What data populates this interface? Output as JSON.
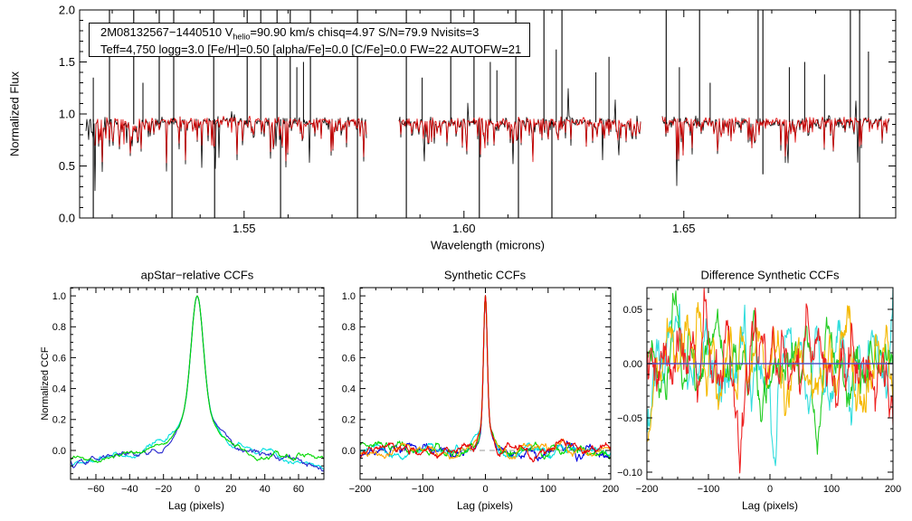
{
  "figure": {
    "background": "#ffffff",
    "kind": "APOGEE spectrum and CCF QA figure"
  },
  "chart_data": [
    {
      "id": "spectrum",
      "type": "line",
      "annotation": {
        "line1_pre": "2M08132567−1440510  V",
        "line1_sub": "helio",
        "line1_post": "=90.90 km/s  chisq=4.97  S/N=79.9  Nvisits=3",
        "line2": "Teff=4,750 logg=3.0 [Fe/H]=0.50 [alpha/Fe]=0.0 [C/Fe]=0.0 FW=22 AUTOFW=21"
      },
      "xlabel": "Wavelength (microns)",
      "ylabel": "Normalized Flux",
      "xlim": [
        1.5126,
        1.6982
      ],
      "ylim": [
        0.0,
        2.0
      ],
      "xticks": [
        {
          "v": 1.55,
          "label": "1.55"
        },
        {
          "v": 1.6,
          "label": "1.60"
        },
        {
          "v": 1.65,
          "label": "1.65"
        }
      ],
      "xminor": 0.01,
      "yticks": [
        {
          "v": 0.0,
          "label": "0.0"
        },
        {
          "v": 0.5,
          "label": "0.5"
        },
        {
          "v": 1.0,
          "label": "1.0"
        },
        {
          "v": 1.5,
          "label": "1.5"
        },
        {
          "v": 2.0,
          "label": "2.0"
        }
      ],
      "yminor": 0.1,
      "grid": false,
      "series": [
        {
          "name": "observed-spectrum",
          "color": "#000000"
        },
        {
          "name": "best-fit-model",
          "color": "#dd0000"
        }
      ],
      "continuum": 0.95,
      "chips": [
        [
          1.514,
          1.5778
        ],
        [
          1.5852,
          1.6402
        ],
        [
          1.6452,
          1.6968
        ]
      ],
      "chip_seeds": [
        11,
        12,
        13
      ],
      "spikes_up_full": [
        1.5194,
        1.5249,
        1.5307,
        1.534,
        1.5431,
        1.5507,
        1.5538,
        1.5575,
        1.5605,
        1.5651,
        1.5758,
        1.5869,
        1.597,
        1.6023,
        1.6118,
        1.6182,
        1.6223,
        1.646,
        1.6536,
        1.6669,
        1.668,
        1.6879,
        1.69
      ],
      "spikes_up": [
        [
          1.5157,
          1.35
        ],
        [
          1.527,
          1.3
        ],
        [
          1.562,
          1.45
        ],
        [
          1.5635,
          1.5
        ],
        [
          1.5905,
          1.35
        ],
        [
          1.606,
          1.5
        ],
        [
          1.6075,
          1.42
        ],
        [
          1.621,
          1.62
        ],
        [
          1.63,
          1.4
        ],
        [
          1.633,
          1.55
        ],
        [
          1.649,
          1.45
        ],
        [
          1.656,
          1.3
        ],
        [
          1.674,
          1.45
        ],
        [
          1.6775,
          1.5
        ],
        [
          1.682,
          1.38
        ],
        [
          1.692,
          1.6
        ]
      ],
      "spikes_down": [
        [
          1.5157,
          0.0
        ],
        [
          1.5336,
          0.0
        ],
        [
          1.5433,
          0.0
        ],
        [
          1.5583,
          0.0
        ],
        [
          1.5758,
          0.0
        ],
        [
          1.5869,
          0.0
        ],
        [
          1.6035,
          0.0
        ],
        [
          1.6124,
          0.0
        ],
        [
          1.62,
          0.0
        ],
        [
          1.668,
          0.42
        ],
        [
          1.69,
          0.0
        ]
      ]
    },
    {
      "id": "apstar-ccf",
      "type": "line",
      "title": "apStar−relative CCFs",
      "xlabel": "Lag (pixels)",
      "ylabel": "Normalized CCF",
      "xlim": [
        -75,
        75
      ],
      "ylim": [
        -0.187,
        1.053
      ],
      "xticks": [
        {
          "v": -60,
          "label": "−60"
        },
        {
          "v": -40,
          "label": "−40"
        },
        {
          "v": -20,
          "label": "−20"
        },
        {
          "v": 0,
          "label": "0"
        },
        {
          "v": 20,
          "label": "20"
        },
        {
          "v": 40,
          "label": "40"
        },
        {
          "v": 60,
          "label": "60"
        }
      ],
      "xminor": 5,
      "yticks": [
        {
          "v": 0.0,
          "label": "0.0"
        },
        {
          "v": 0.2,
          "label": "0.2"
        },
        {
          "v": 0.4,
          "label": "0.4"
        },
        {
          "v": 0.6,
          "label": "0.6"
        },
        {
          "v": 0.8,
          "label": "0.8"
        },
        {
          "v": 1.0,
          "label": "1.0"
        }
      ],
      "yminor": 0.05,
      "peak": {
        "center": 0,
        "height": 1.0,
        "core_amp": 0.75,
        "core_w": 5,
        "wing_amp": 0.25,
        "wing_w": 16,
        "droop": 1.6e-05,
        "noise_amp": 0.02,
        "noise_corr": 5
      },
      "series": [
        {
          "name": "ccf-visit-cyan",
          "color": "#00e0e0",
          "seed": 102
        },
        {
          "name": "ccf-visit-blue",
          "color": "#2828cf",
          "seed": 101
        },
        {
          "name": "ccf-visit-green",
          "color": "#00d800",
          "seed": 103
        }
      ]
    },
    {
      "id": "synthetic-ccf",
      "type": "line",
      "title": "Synthetic CCFs",
      "xlabel": "Lag (pixels)",
      "zero_line": {
        "style": "dashed",
        "color": "#999999",
        "y": 0.0
      },
      "xlim": [
        -200,
        200
      ],
      "ylim": [
        -0.187,
        1.053
      ],
      "xticks": [
        {
          "v": -200,
          "label": "−200"
        },
        {
          "v": -100,
          "label": "−100"
        },
        {
          "v": 0,
          "label": "0"
        },
        {
          "v": 100,
          "label": "100"
        },
        {
          "v": 200,
          "label": "200"
        }
      ],
      "xminor": 25,
      "yticks": [
        {
          "v": 0.0,
          "label": "0.0"
        },
        {
          "v": 0.2,
          "label": "0.2"
        },
        {
          "v": 0.4,
          "label": "0.4"
        },
        {
          "v": 0.6,
          "label": "0.6"
        },
        {
          "v": 0.8,
          "label": "0.8"
        },
        {
          "v": 1.0,
          "label": "1.0"
        }
      ],
      "yminor": 0.05,
      "peak": {
        "center": 0,
        "height": 1.0,
        "core_amp": 0.8,
        "core_w": 4,
        "wing_amp": 0.2,
        "wing_w": 12,
        "droop": 0,
        "noise_amp": 0.026,
        "noise_corr": 7
      },
      "series": [
        {
          "name": "syn-ccf-blue",
          "color": "#0000e0",
          "seed": 201
        },
        {
          "name": "syn-ccf-cyan",
          "color": "#00e0e0",
          "seed": 202
        },
        {
          "name": "syn-ccf-green",
          "color": "#00d800",
          "seed": 203
        },
        {
          "name": "syn-ccf-orange",
          "color": "#ffa500",
          "seed": 204
        },
        {
          "name": "syn-ccf-red",
          "color": "#e80000",
          "seed": 205
        }
      ]
    },
    {
      "id": "difference-synthetic-ccf",
      "type": "line",
      "title": "Difference Synthetic CCFs",
      "xlabel": "Lag (pixels)",
      "zero_line": {
        "style": "dashed",
        "color": "#999999",
        "y": 0.0
      },
      "xlim": [
        -200,
        200
      ],
      "ylim": [
        -0.1067,
        0.07
      ],
      "xticks": [
        {
          "v": -200,
          "label": "−200"
        },
        {
          "v": -100,
          "label": "−100"
        },
        {
          "v": 0,
          "label": "0"
        },
        {
          "v": 100,
          "label": "100"
        },
        {
          "v": 200,
          "label": "200"
        }
      ],
      "xminor": 25,
      "yticks": [
        {
          "v": 0.05,
          "label": "0.05"
        },
        {
          "v": 0.0,
          "label": "0.00"
        },
        {
          "v": -0.05,
          "label": "−0.05"
        },
        {
          "v": -0.1,
          "label": "−0.10"
        }
      ],
      "yminor": 0.01,
      "noise": {
        "amp": 0.021,
        "corr": 5
      },
      "series": [
        {
          "name": "diff-cyan",
          "color": "#33dddd",
          "seed": 303,
          "bumps": [
            [
              -150,
              0.05,
              8
            ],
            [
              8,
              -0.102,
              7
            ],
            [
              75,
              0.035,
              8
            ],
            [
              -105,
              0.035,
              6
            ]
          ]
        },
        {
          "name": "diff-green",
          "color": "#22cc22",
          "seed": 302,
          "bumps": [
            [
              -158,
              0.062,
              8
            ],
            [
              95,
              0.04,
              8
            ],
            [
              -15,
              -0.03,
              8
            ],
            [
              140,
              0.025,
              9
            ]
          ]
        },
        {
          "name": "diff-orange",
          "color": "#f5b800",
          "seed": 304,
          "bumps": [
            [
              128,
              0.06,
              5
            ],
            [
              -118,
              0.036,
              9
            ],
            [
              22,
              -0.035,
              8
            ],
            [
              -160,
              0.03,
              6
            ]
          ]
        },
        {
          "name": "diff-red",
          "color": "#ee2222",
          "seed": 301,
          "bumps": [
            [
              -198,
              -0.05,
              5
            ],
            [
              -48,
              -0.06,
              7
            ],
            [
              58,
              0.04,
              7
            ],
            [
              132,
              0.05,
              6
            ],
            [
              -125,
              0.034,
              9
            ]
          ]
        },
        {
          "name": "diff-zero-flat-blue",
          "color": "#5555c8",
          "flat": true
        }
      ]
    }
  ]
}
